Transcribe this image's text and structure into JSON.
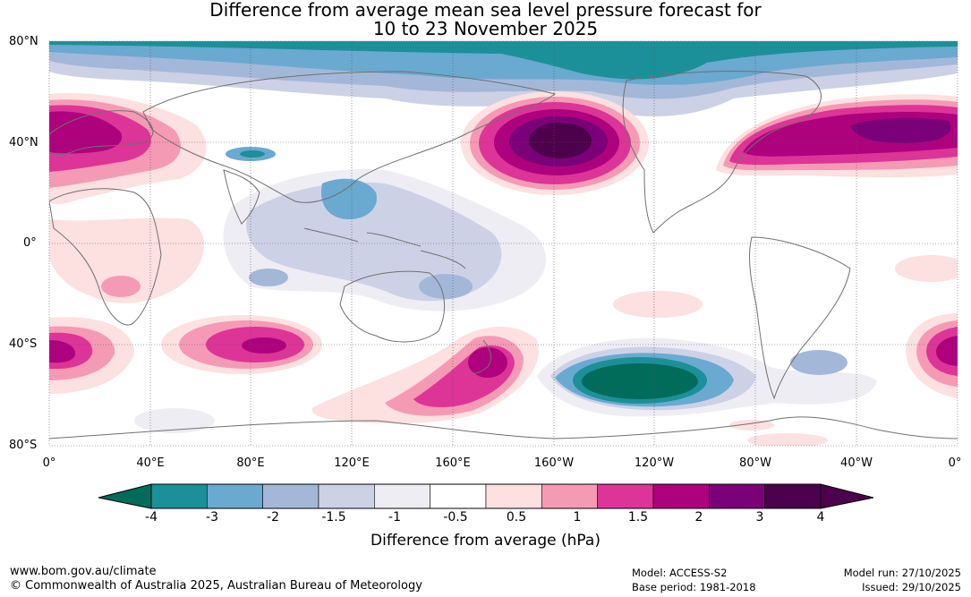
{
  "title": {
    "line1": "Difference from average mean sea level pressure forecast for",
    "line2": "10 to 23 November 2025"
  },
  "map": {
    "lat_labels": [
      "80°N",
      "40°N",
      "0°",
      "40°S",
      "80°S"
    ],
    "lon_labels": [
      "0°",
      "40°E",
      "80°E",
      "120°E",
      "160°E",
      "160°W",
      "120°W",
      "80°W",
      "40°W",
      "0°"
    ]
  },
  "colorbar": {
    "title": "Difference from average (hPa)",
    "tick_labels": [
      "-4",
      "-3",
      "-2",
      "-1.5",
      "-1",
      "-0.5",
      "0.5",
      "1",
      "1.5",
      "2",
      "3",
      "4"
    ],
    "colors": [
      "#1c9098",
      "#6aa9d0",
      "#a3b8d8",
      "#cdd1e6",
      "#efedf4",
      "#ffffff",
      "#fde0e0",
      "#f59ab5",
      "#dd3497",
      "#ae017e",
      "#7a0177",
      "#4d004b"
    ],
    "low_extend_color": "#016c59",
    "high_extend_color": "#4d004b"
  },
  "footer": {
    "website": "www.bom.gov.au/climate",
    "copyright": "© Commonwealth of Australia 2025, Australian Bureau of Meteorology",
    "model": "Model: ACCESS-S2",
    "base_period": "Base period: 1981-2018",
    "model_run": "Model run: 27/10/2025",
    "issued": "Issued: 29/10/2025"
  }
}
